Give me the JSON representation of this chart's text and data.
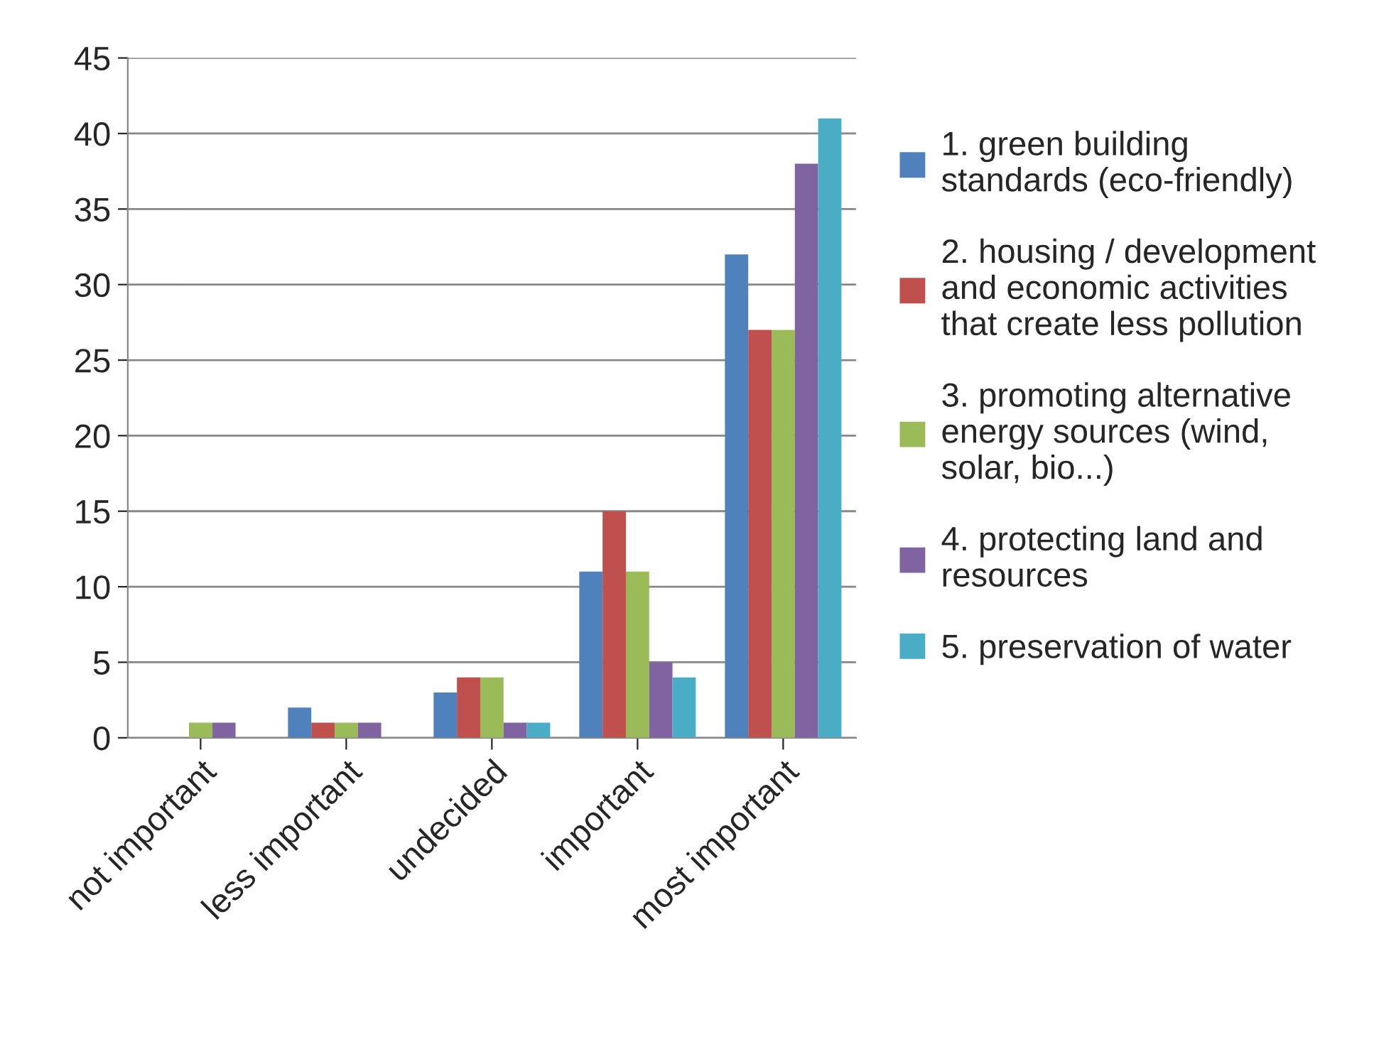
{
  "chart_data": {
    "type": "bar",
    "categories": [
      "not important",
      "less important",
      "undecided",
      "important",
      "most important"
    ],
    "series": [
      {
        "name": "1. green building\nstandards (eco-friendly)",
        "color": "#4f81bd",
        "values": [
          0,
          2,
          3,
          11,
          32
        ]
      },
      {
        "name": "2. housing / development\nand economic activities\nthat create less pollution",
        "color": "#c0504d",
        "values": [
          0,
          1,
          4,
          15,
          27
        ]
      },
      {
        "name": "3. promoting alternative\nenergy sources (wind,\nsolar, bio...)",
        "color": "#9bbb59",
        "values": [
          1,
          1,
          4,
          11,
          27
        ]
      },
      {
        "name": "4. protecting land and\nresources",
        "color": "#8064a2",
        "values": [
          1,
          1,
          1,
          5,
          38
        ]
      },
      {
        "name": "5. preservation of water",
        "color": "#4bacc6",
        "values": [
          0,
          0,
          1,
          4,
          41
        ]
      }
    ],
    "ylim": [
      0,
      45
    ],
    "yticks": [
      0,
      5,
      10,
      15,
      20,
      25,
      30,
      35,
      40,
      45
    ],
    "grid": "y",
    "legend": "right"
  }
}
